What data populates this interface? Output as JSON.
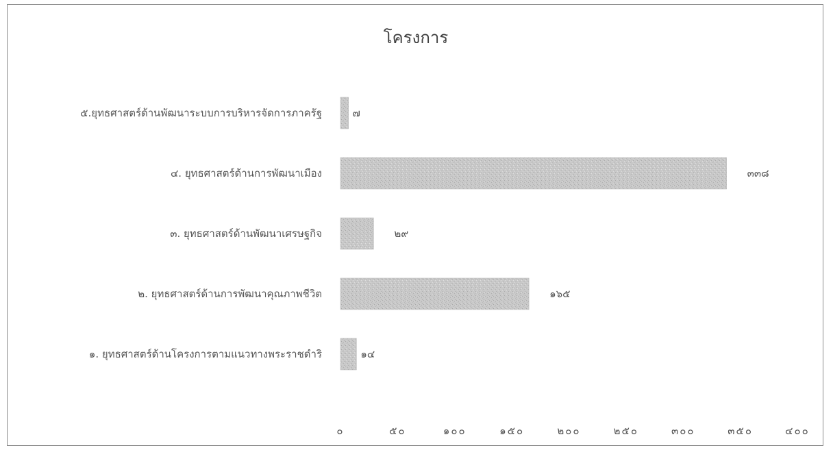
{
  "chart_data": {
    "type": "bar",
    "orientation": "horizontal",
    "title": "โครงการ",
    "categories": [
      "๕.ยุทธศาสตร์ด้านพัฒนาระบบการบริหารจัดการภาครัฐ",
      "๔. ยุทธศาสตร์ด้านการพัฒนาเมือง",
      "๓. ยุทธศาสตร์ด้านพัฒนาเศรษฐกิจ",
      "๒. ยุทธศาสตร์ด้านการพัฒนาคุณภาพชีวิต",
      "๑. ยุทธศาสตร์ด้านโครงการตามแนวทางพระราชดำริ"
    ],
    "values": [
      7,
      338,
      29,
      165,
      14
    ],
    "data_labels": [
      "๗",
      "๓๓๘",
      "๒๙",
      "๑๖๕",
      "๑๔"
    ],
    "xlim": [
      0,
      400
    ],
    "x_ticks": [
      0,
      50,
      100,
      150,
      200,
      250,
      300,
      350,
      400
    ],
    "x_tick_labels": [
      "๐",
      "๕๐",
      "๑๐๐",
      "๑๕๐",
      "๒๐๐",
      "๒๕๐",
      "๓๐๐",
      "๓๕๐",
      "๔๐๐"
    ],
    "grid": false,
    "legend": "none",
    "bar_color": "#c8c8c8"
  }
}
